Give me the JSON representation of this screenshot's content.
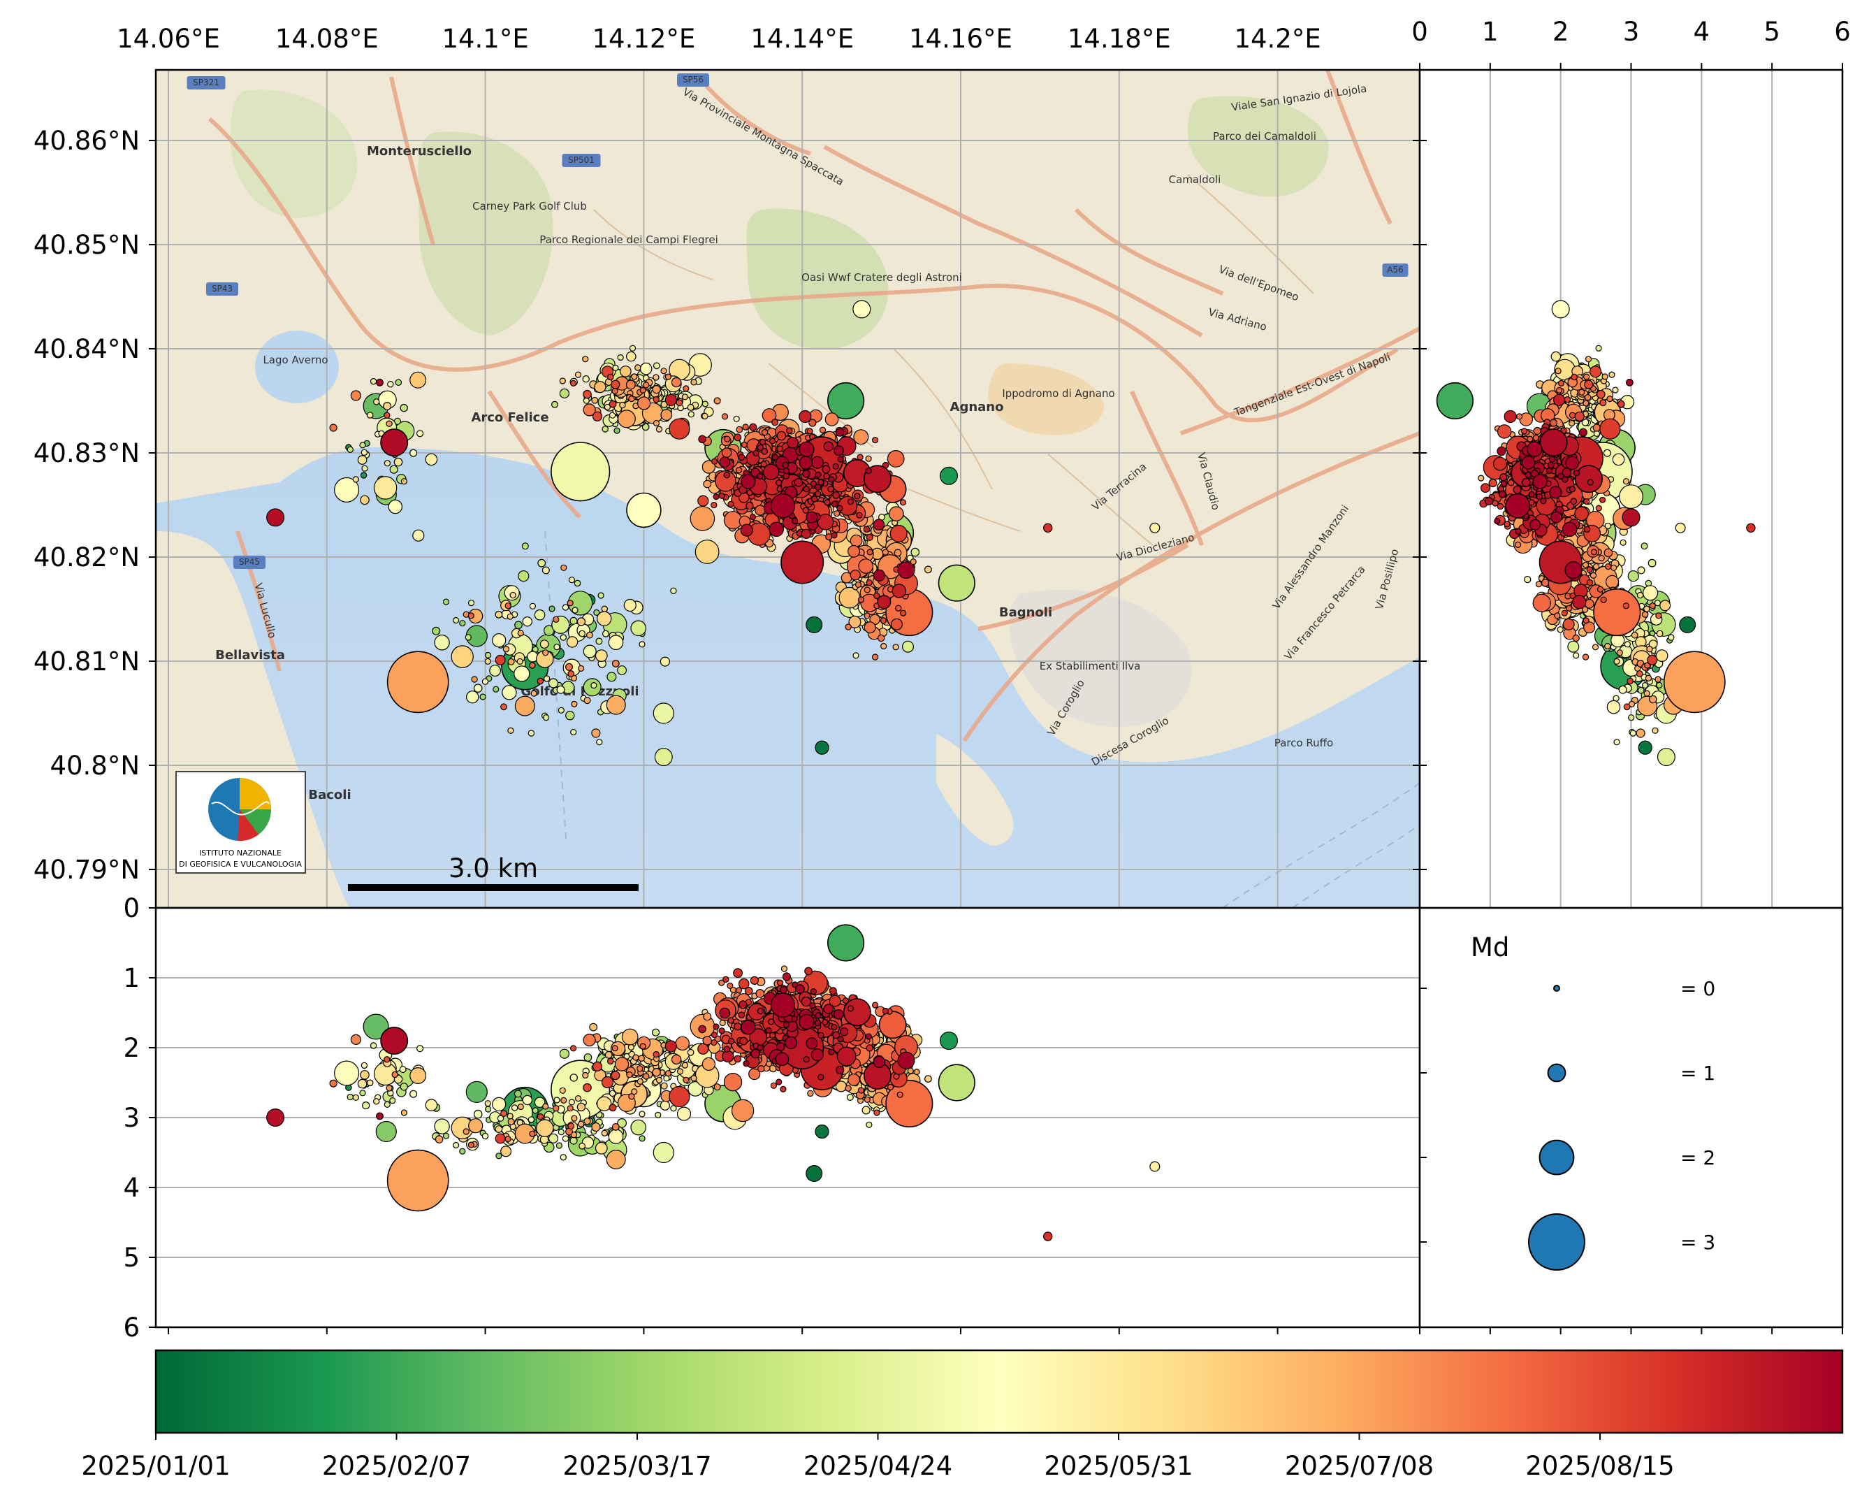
{
  "chart_data": [
    {
      "type": "scatter",
      "panel": "map",
      "xlabel": "",
      "ylabel": "",
      "xlim": [
        14.05,
        14.21
      ],
      "ylim": [
        40.788,
        40.867
      ],
      "x_ticks": [
        "14.06°E",
        "14.08°E",
        "14.1°E",
        "14.12°E",
        "14.14°E",
        "14.16°E",
        "14.18°E",
        "14.2°E"
      ],
      "y_ticks": [
        "40.79°N",
        "40.8°N",
        "40.81°N",
        "40.82°N",
        "40.83°N",
        "40.84°N",
        "40.85°N",
        "40.86°N"
      ],
      "grid": true,
      "scale_bar": "3.0 km",
      "logo_lines": [
        "ISTITUTO NAZIONALE",
        "DI GEOFISICA E VULCANOLOGIA"
      ],
      "place_labels": [
        "Monterusciello",
        "Carney Park Golf Club",
        "Parco Regionale dei Campi Flegrei",
        "Oasi Wwf Cratere degli Astroni",
        "Lago Averno",
        "Arco Felice",
        "Agnano",
        "Ippodromo di Agnano",
        "Camaldoli",
        "Parco dei Camaldoli",
        "Bagnoli",
        "Bellavista",
        "Bacoli",
        "Ex Stabilimenti Ilva",
        "Parco Ruffo",
        "Via dell'Epomeo",
        "Via Adriano",
        "Via Terracina",
        "Via Claudio",
        "Via Diocleziano",
        "Via Coroglio",
        "Discesa Coroglio",
        "Via Alessandro Manzoni",
        "Via Francesco Petrarca",
        "Via Posillipo",
        "Via Lucullo",
        "Tangenziale Est-Ovest di Napoli",
        "Via Provinciale Montagna Spaccata",
        "Viale San Ignazio di Lojola",
        "Golfo di Pozzuoli",
        "SP321",
        "SP43",
        "SP45",
        "SP501",
        "SP56",
        "A56"
      ],
      "marker_encoding": "size = Md, color = date",
      "representative_events": [
        {
          "lon": 14.112,
          "lat": 40.8282,
          "depth": 2.6,
          "md": 3.1,
          "t": 0.46
        },
        {
          "lon": 14.0915,
          "lat": 40.808,
          "depth": 3.9,
          "md": 3.2,
          "t": 0.72
        },
        {
          "lon": 14.105,
          "lat": 40.8095,
          "depth": 2.9,
          "md": 2.6,
          "t": 0.12
        },
        {
          "lon": 14.1535,
          "lat": 40.8147,
          "depth": 2.8,
          "md": 2.6,
          "t": 0.8
        },
        {
          "lon": 14.1425,
          "lat": 40.8295,
          "depth": 2.3,
          "md": 2.4,
          "t": 0.93
        },
        {
          "lon": 14.14,
          "lat": 40.8195,
          "depth": 2.0,
          "md": 2.4,
          "t": 0.95
        },
        {
          "lon": 14.13,
          "lat": 40.8305,
          "depth": 2.8,
          "md": 2.1,
          "t": 0.28
        },
        {
          "lon": 14.1455,
          "lat": 40.835,
          "depth": 0.5,
          "md": 2.1,
          "t": 0.15
        },
        {
          "lon": 14.1515,
          "lat": 40.8223,
          "depth": 2.5,
          "md": 2.3,
          "t": 0.3
        },
        {
          "lon": 14.12,
          "lat": 40.8245,
          "depth": 2.6,
          "md": 2.0,
          "t": 0.5
        },
        {
          "lon": 14.1495,
          "lat": 40.8275,
          "depth": 2.4,
          "md": 1.6,
          "t": 0.96
        },
        {
          "lon": 14.0885,
          "lat": 40.831,
          "depth": 1.9,
          "md": 1.6,
          "t": 0.98
        },
        {
          "lon": 14.0862,
          "lat": 40.8345,
          "depth": 1.7,
          "md": 1.5,
          "t": 0.2
        },
        {
          "lon": 14.1325,
          "lat": 40.8237,
          "depth": 2.9,
          "md": 1.3,
          "t": 0.75
        },
        {
          "lon": 14.128,
          "lat": 40.8205,
          "depth": 2.4,
          "md": 1.4,
          "t": 0.62
        },
        {
          "lon": 14.0735,
          "lat": 40.8238,
          "depth": 3.0,
          "md": 1.0,
          "t": 0.97
        },
        {
          "lon": 14.1245,
          "lat": 40.8323,
          "depth": 2.7,
          "md": 1.2,
          "t": 0.88
        },
        {
          "lon": 14.1415,
          "lat": 40.8135,
          "depth": 3.8,
          "md": 0.9,
          "t": 0.02
        },
        {
          "lon": 14.1425,
          "lat": 40.8017,
          "depth": 3.2,
          "md": 0.7,
          "t": 0.03
        },
        {
          "lon": 14.1135,
          "lat": 40.8075,
          "depth": 3.4,
          "md": 1.0,
          "t": 0.3
        },
        {
          "lon": 14.1225,
          "lat": 40.805,
          "depth": 3.5,
          "md": 1.2,
          "t": 0.45
        },
        {
          "lon": 14.1165,
          "lat": 40.8058,
          "depth": 3.6,
          "md": 1.1,
          "t": 0.7
        },
        {
          "lon": 14.1585,
          "lat": 40.8278,
          "depth": 1.9,
          "md": 1.0,
          "t": 0.1
        },
        {
          "lon": 14.1475,
          "lat": 40.8438,
          "depth": 2.0,
          "md": 1.0,
          "t": 0.5
        },
        {
          "lon": 14.0915,
          "lat": 40.837,
          "depth": 2.4,
          "md": 0.9,
          "t": 0.65
        },
        {
          "lon": 14.0875,
          "lat": 40.826,
          "depth": 3.2,
          "md": 1.2,
          "t": 0.25
        },
        {
          "lon": 14.1315,
          "lat": 40.8258,
          "depth": 3.0,
          "md": 1.4,
          "t": 0.55
        },
        {
          "lon": 14.1595,
          "lat": 40.8175,
          "depth": 2.5,
          "md": 2.1,
          "t": 0.35
        },
        {
          "lon": 14.1095,
          "lat": 40.8135,
          "depth": 3.0,
          "md": 1.0,
          "t": 0.4
        },
        {
          "lon": 14.1225,
          "lat": 40.8008,
          "depth": 3.5,
          "md": 1.0,
          "t": 0.42
        },
        {
          "lon": 14.171,
          "lat": 40.8228,
          "depth": 4.7,
          "md": 0.3,
          "t": 0.9
        },
        {
          "lon": 14.1845,
          "lat": 40.8228,
          "depth": 3.7,
          "md": 0.4,
          "t": 0.55
        }
      ]
    },
    {
      "type": "scatter",
      "panel": "lat-depth",
      "xlabel": "",
      "ylabel": "",
      "xlim": [
        0,
        6
      ],
      "x_ticks": [
        "0",
        "1",
        "2",
        "3",
        "4",
        "5",
        "6"
      ],
      "grid": true
    },
    {
      "type": "scatter",
      "panel": "lon-depth",
      "xlabel": "",
      "ylabel": "",
      "ylim": [
        6,
        0
      ],
      "y_ticks": [
        "0",
        "1",
        "2",
        "3",
        "4",
        "5",
        "6"
      ],
      "grid": true
    },
    {
      "type": "legend",
      "title": "Md",
      "entries": [
        {
          "md": 0,
          "label": "= 0"
        },
        {
          "md": 1,
          "label": "= 1"
        },
        {
          "md": 2,
          "label": "= 2"
        },
        {
          "md": 3,
          "label": "= 3"
        }
      ],
      "marker_color": "#1f77b4"
    },
    {
      "type": "colorbar",
      "colormap": "RdYlGn_r",
      "tick_labels": [
        "2025/01/01",
        "2025/02/07",
        "2025/03/17",
        "2025/04/24",
        "2025/05/31",
        "2025/07/08",
        "2025/08/15"
      ],
      "colors": [
        "#006837",
        "#1a9850",
        "#66bd63",
        "#a6d96a",
        "#d9ef8b",
        "#ffffbf",
        "#fee08b",
        "#fdae61",
        "#f46d43",
        "#d73027",
        "#a50026"
      ]
    }
  ]
}
